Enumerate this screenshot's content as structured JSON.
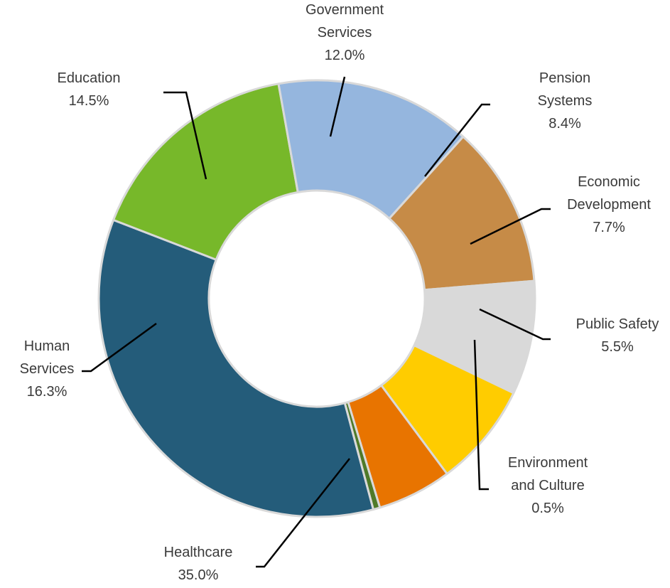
{
  "chart_data": {
    "type": "pie",
    "variant": "donut",
    "title": "",
    "legend": "none",
    "slices": [
      {
        "key": "healthcare",
        "label_lines": [
          "Healthcare"
        ],
        "value": 35.0,
        "value_text": "35.0%",
        "color": "#245c7a"
      },
      {
        "key": "human-services",
        "label_lines": [
          "Human",
          "Services"
        ],
        "value": 16.3,
        "value_text": "16.3%",
        "color": "#77b82a"
      },
      {
        "key": "education",
        "label_lines": [
          "Education"
        ],
        "value": 14.5,
        "value_text": "14.5%",
        "color": "#95b6de"
      },
      {
        "key": "government-services",
        "label_lines": [
          "Government",
          "Services"
        ],
        "value": 12.0,
        "value_text": "12.0%",
        "color": "#c68b47"
      },
      {
        "key": "pension-systems",
        "label_lines": [
          "Pension",
          "Systems"
        ],
        "value": 8.4,
        "value_text": "8.4%",
        "color": "#d9d9d9"
      },
      {
        "key": "economic-development",
        "label_lines": [
          "Economic",
          "Development"
        ],
        "value": 7.7,
        "value_text": "7.7%",
        "color": "#ffcc00"
      },
      {
        "key": "public-safety",
        "label_lines": [
          "Public Safety"
        ],
        "value": 5.5,
        "value_text": "5.5%",
        "color": "#e87400"
      },
      {
        "key": "environment-and-culture",
        "label_lines": [
          "Environment",
          "and Culture"
        ],
        "value": 0.5,
        "value_text": "0.5%",
        "color": "#4f7a28"
      }
    ]
  }
}
